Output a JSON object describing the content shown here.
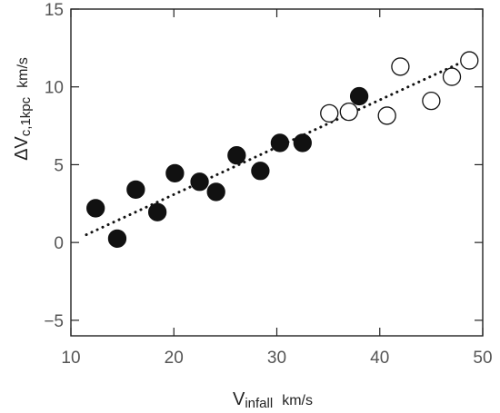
{
  "chart_data": {
    "type": "scatter",
    "xlim": [
      10,
      50
    ],
    "ylim": [
      -6,
      15
    ],
    "x_ticks": [
      10,
      20,
      30,
      40,
      50
    ],
    "y_ticks": [
      -5,
      0,
      5,
      10,
      15
    ],
    "x_tick_labels": [
      "10",
      "20",
      "30",
      "40",
      "50"
    ],
    "y_tick_labels": [
      "−5",
      "0",
      "5",
      "10",
      "15"
    ],
    "xlabel": {
      "main": "V",
      "sub": "infall",
      "unit": "km/s"
    },
    "ylabel": {
      "main": "ΔV",
      "sub": "c,1kpc",
      "unit": "km/s"
    },
    "grid": false,
    "series": [
      {
        "marker": "filled-circle",
        "color": "#111111",
        "points": [
          [
            12.4,
            2.2
          ],
          [
            14.5,
            0.25
          ],
          [
            16.3,
            3.4
          ],
          [
            18.4,
            1.95
          ],
          [
            20.1,
            4.45
          ],
          [
            22.5,
            3.9
          ],
          [
            24.1,
            3.25
          ],
          [
            26.1,
            5.6
          ],
          [
            28.4,
            4.6
          ],
          [
            30.3,
            6.4
          ],
          [
            32.5,
            6.4
          ],
          [
            38.0,
            9.4
          ]
        ]
      },
      {
        "marker": "open-circle",
        "color": "#111111",
        "points": [
          [
            35.1,
            8.3
          ],
          [
            37.0,
            8.4
          ],
          [
            40.7,
            8.15
          ],
          [
            42.0,
            11.3
          ],
          [
            45.0,
            9.1
          ],
          [
            47.0,
            10.65
          ],
          [
            48.7,
            11.7
          ]
        ]
      }
    ],
    "fit_line": {
      "style": "dotted",
      "from": [
        11.5,
        0.5
      ],
      "to": [
        49.5,
        12.05
      ]
    }
  }
}
